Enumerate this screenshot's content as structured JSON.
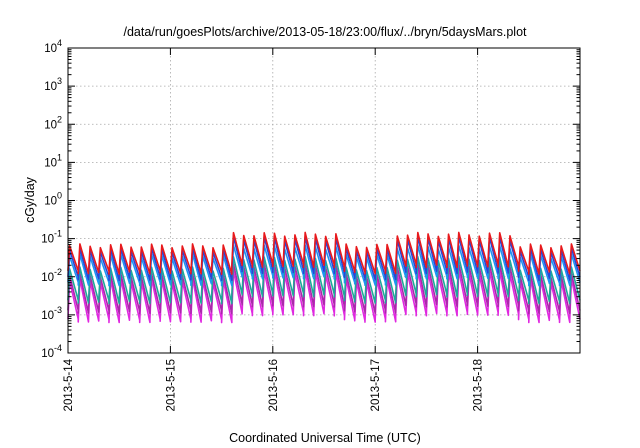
{
  "chart_data": {
    "type": "line",
    "title": "/data/run/goesPlots/archive/2013-05-18/23:00/flux/../bryn/5daysMars.plot",
    "xlabel": "Coordinated Universal Time (UTC)",
    "ylabel": "cGy/day",
    "xlim": [
      "2013-05-14 00:00",
      "2013-05-19 00:00"
    ],
    "ylim": [
      0.0001,
      10000
    ],
    "yscale": "log",
    "grid": true,
    "x_ticks": [
      "2013-5-14",
      "2013-5-15",
      "2013-5-16",
      "2013-5-17",
      "2013-5-18"
    ],
    "y_ticks": [
      {
        "base": "10",
        "exp": "-4"
      },
      {
        "base": "10",
        "exp": "-3"
      },
      {
        "base": "10",
        "exp": "-2"
      },
      {
        "base": "10",
        "exp": "-1"
      },
      {
        "base": "10",
        "exp": "0"
      },
      {
        "base": "10",
        "exp": "1"
      },
      {
        "base": "10",
        "exp": "2"
      },
      {
        "base": "10",
        "exp": "3"
      },
      {
        "base": "10",
        "exp": "4"
      }
    ],
    "pattern": "sawtooth, period ~2.4 h (10 cycles per day); sharp rise followed by decay",
    "period_hours": 2.4,
    "higher_flux_interval": [
      "2013-05-15 15:00",
      "2013-05-16 17:00"
    ],
    "higher_flux_interval_2": [
      "2013-05-17 06:00",
      "2013-05-18 10:00"
    ],
    "series": [
      {
        "color": "#e8191c",
        "peak": 0.065,
        "trough": 0.013,
        "peak_high": 0.13
      },
      {
        "color": "#2a44d6",
        "peak": 0.05,
        "trough": 0.009,
        "peak_high": 0.1
      },
      {
        "color": "#1c96f2",
        "peak": 0.035,
        "trough": 0.0065,
        "peak_high": 0.06
      },
      {
        "color": "#1fa89a",
        "peak": 0.016,
        "trough": 0.0022,
        "peak_high": 0.03
      },
      {
        "color": "#aa28aa",
        "peak": 0.011,
        "trough": 0.0012,
        "peak_high": 0.02
      },
      {
        "color": "#e028e0",
        "peak": 0.008,
        "trough": 0.0007,
        "peak_high": 0.013
      }
    ]
  }
}
